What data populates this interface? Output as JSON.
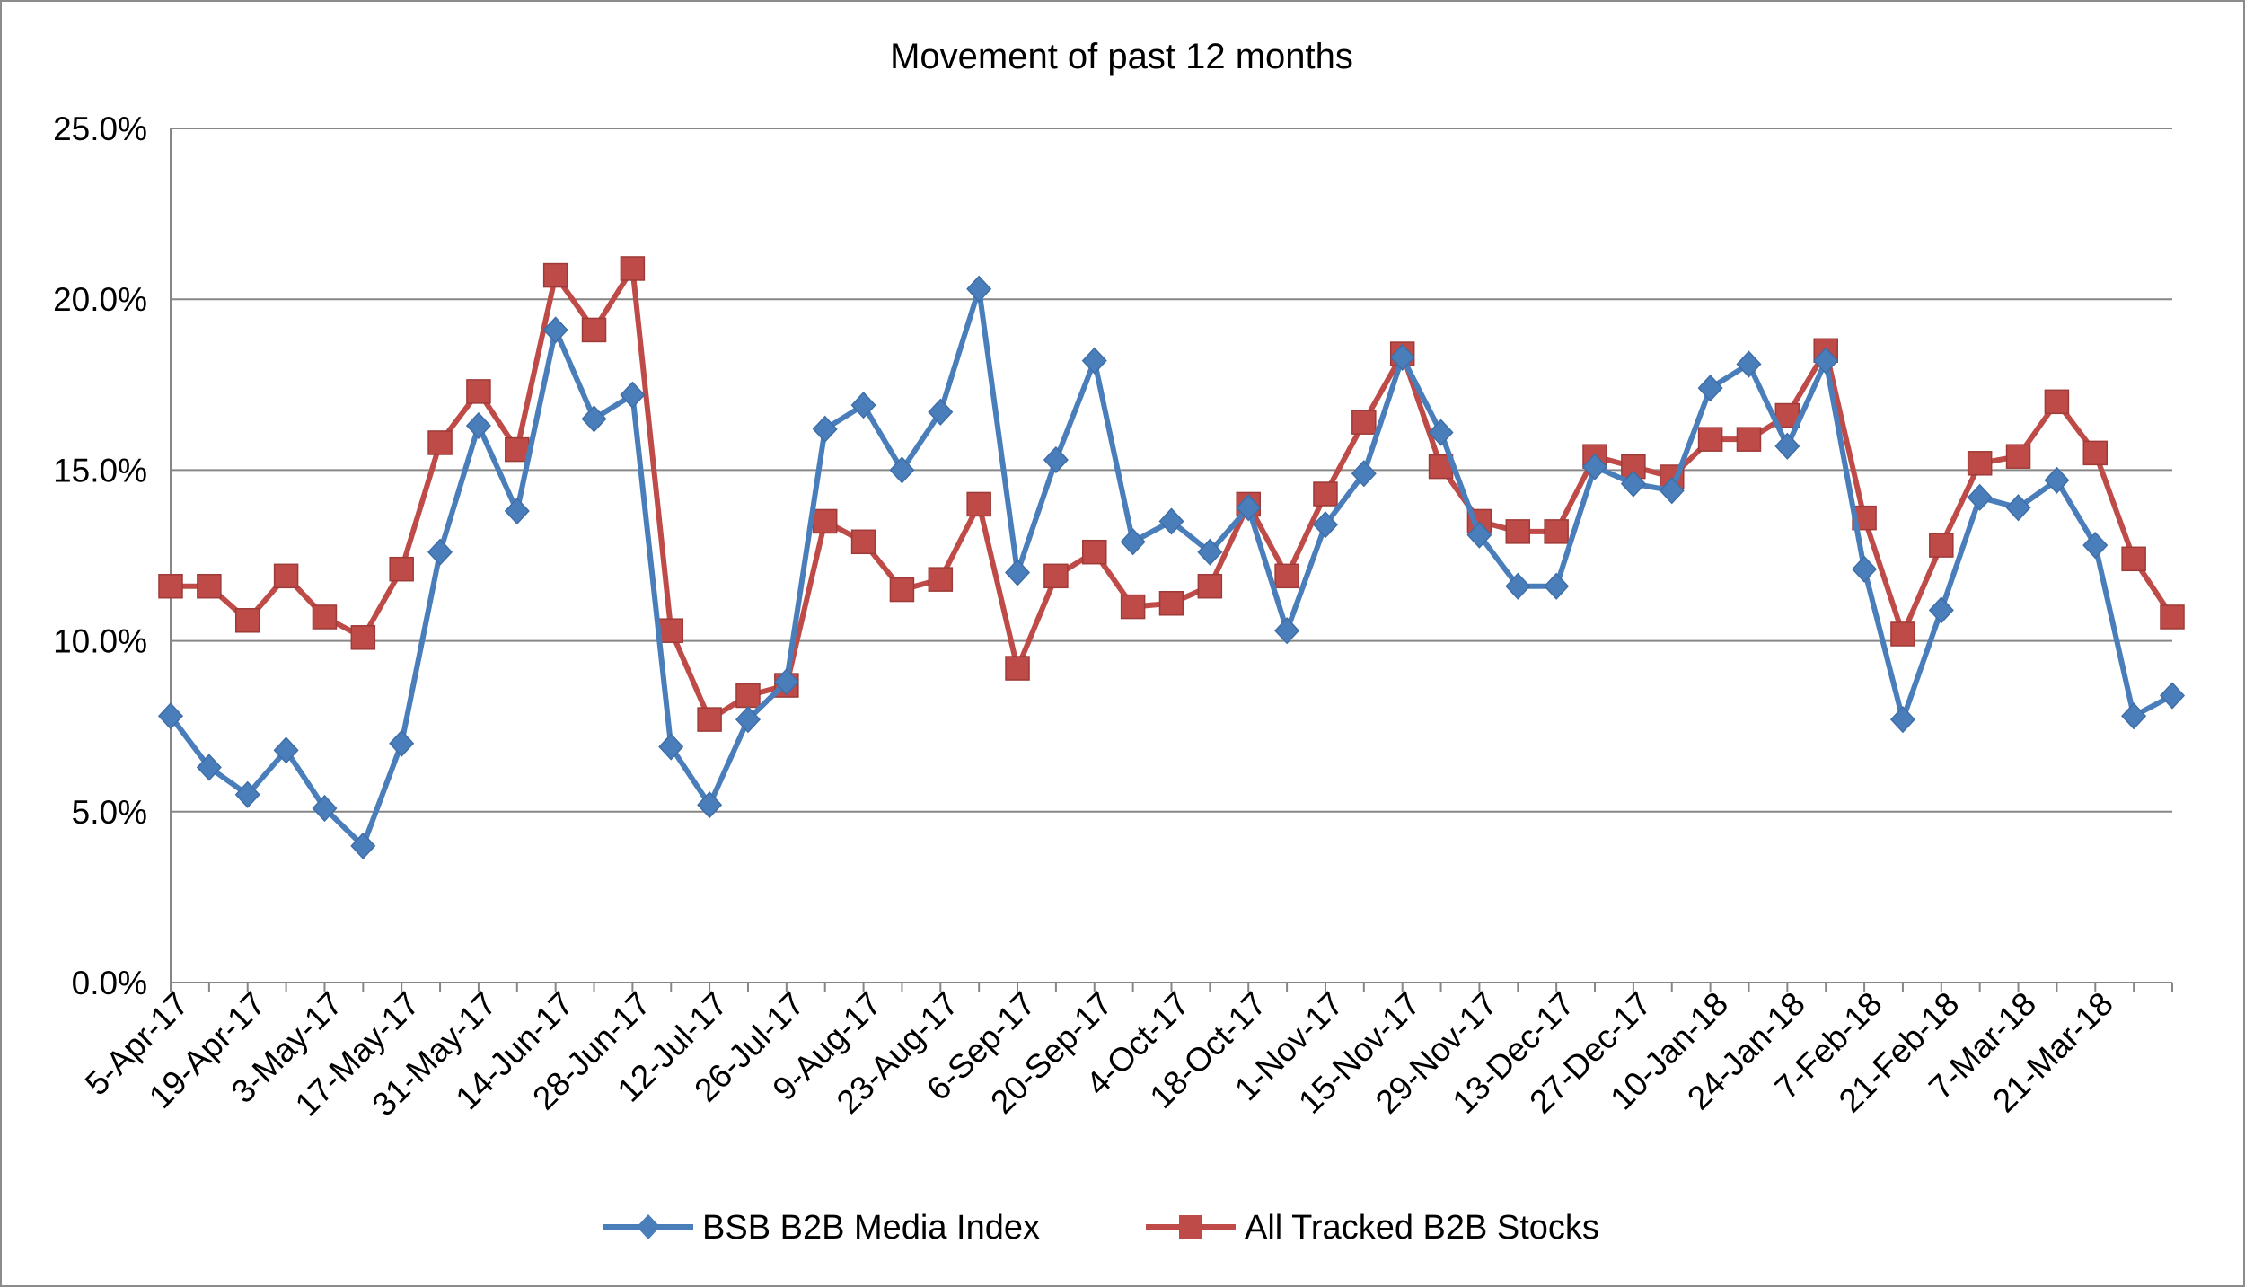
{
  "chart_data": {
    "type": "line",
    "title": "Movement of past 12 months",
    "xlabel": "",
    "ylabel": "",
    "ylim": [
      0,
      25
    ],
    "y_ticks": [
      "0.0%",
      "5.0%",
      "10.0%",
      "15.0%",
      "20.0%",
      "25.0%"
    ],
    "y_tick_values": [
      0,
      5,
      10,
      15,
      20,
      25
    ],
    "grid": "horizontal",
    "legend_position": "bottom",
    "x_tick_labels": [
      "5-Apr-17",
      "19-Apr-17",
      "3-May-17",
      "17-May-17",
      "31-May-17",
      "14-Jun-17",
      "28-Jun-17",
      "12-Jul-17",
      "26-Jul-17",
      "9-Aug-17",
      "23-Aug-17",
      "6-Sep-17",
      "20-Sep-17",
      "4-Oct-17",
      "18-Oct-17",
      "1-Nov-17",
      "15-Nov-17",
      "29-Nov-17",
      "13-Dec-17",
      "27-Dec-17",
      "10-Jan-18",
      "24-Jan-18",
      "7-Feb-18",
      "21-Feb-18",
      "7-Mar-18",
      "21-Mar-18"
    ],
    "series": [
      {
        "name": "BSB B2B Media Index",
        "color": "#4a7ebb",
        "marker": "diamond",
        "values": [
          7.8,
          6.3,
          5.5,
          6.8,
          5.1,
          4.0,
          7.0,
          12.6,
          16.3,
          13.8,
          19.1,
          16.5,
          17.2,
          6.9,
          5.2,
          7.7,
          8.8,
          16.2,
          16.9,
          15.0,
          16.7,
          20.3,
          12.0,
          15.3,
          18.2,
          12.9,
          13.5,
          12.6,
          13.9,
          10.3,
          13.4,
          14.9,
          18.3,
          16.1,
          13.1,
          11.6,
          11.6,
          15.1,
          14.6,
          14.4,
          17.4,
          18.1,
          15.7,
          18.2,
          12.1,
          7.7,
          10.9,
          14.2,
          13.9,
          14.7,
          12.8,
          7.8,
          8.4
        ]
      },
      {
        "name": "All Tracked B2B Stocks",
        "color": "#be4b48",
        "marker": "square",
        "values": [
          11.6,
          11.6,
          10.6,
          11.9,
          10.7,
          10.1,
          12.1,
          15.8,
          17.3,
          15.6,
          20.7,
          19.1,
          20.9,
          10.3,
          7.7,
          8.4,
          8.7,
          13.5,
          12.9,
          11.5,
          11.8,
          14.0,
          9.2,
          11.9,
          12.6,
          11.0,
          11.1,
          11.6,
          14.0,
          11.9,
          14.3,
          16.4,
          18.4,
          15.1,
          13.5,
          13.2,
          13.2,
          15.4,
          15.1,
          14.8,
          15.9,
          15.9,
          16.6,
          18.5,
          13.6,
          10.2,
          12.8,
          15.2,
          15.4,
          17.0,
          15.5,
          12.4,
          10.7
        ]
      }
    ]
  }
}
